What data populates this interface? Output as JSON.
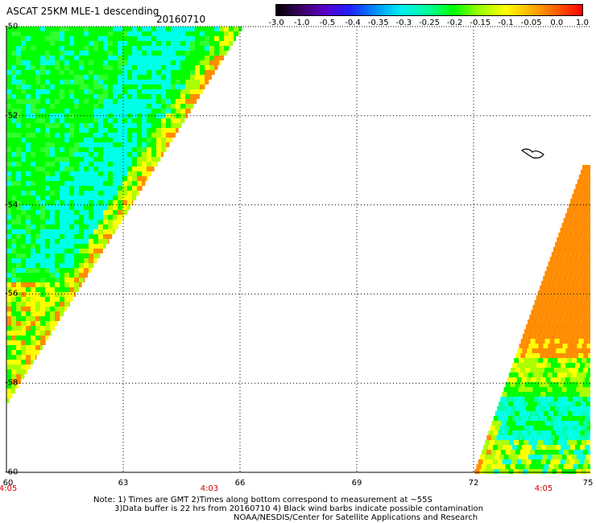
{
  "header": {
    "title": "ASCAT 25KM MLE-1 descending",
    "date": "20160710"
  },
  "colorbar": {
    "tick_labels": [
      "-3.0",
      "-1.0",
      "-0.5",
      "-0.4",
      "-0.35",
      "-0.3",
      "-0.25",
      "-0.2",
      "-0.15",
      "-0.1",
      "-0.05",
      "0.0",
      "1.0"
    ],
    "colors": [
      "#000000",
      "#3c0064",
      "#5a00c8",
      "#1e1eff",
      "#0096ff",
      "#00f0f0",
      "#00ff96",
      "#00ff00",
      "#96ff00",
      "#ffff00",
      "#ffb400",
      "#ff6400",
      "#ff0000"
    ]
  },
  "map": {
    "lat_labels": [
      "-50",
      "-52",
      "-54",
      "-56",
      "-58",
      "-60"
    ],
    "lon_labels": [
      "60",
      "63",
      "66",
      "69",
      "72",
      "75"
    ],
    "time_labels": [
      "4:05",
      "4:03",
      "4:05"
    ],
    "swath_colors": {
      "cyan": "#00ffe6",
      "green": "#00ff00",
      "yellow_green": "#aaff00",
      "yellow": "#ffff00",
      "orange": "#ff8c00"
    }
  },
  "notes": {
    "line1": "Note: 1) Times are GMT 2)Times along bottom correspond to measurement at ~55S",
    "line2": "3)Data buffer is 22 hrs from 20160710 4) Black wind barbs indicate possible contamination",
    "line3": "NOAA/NESDIS/Center for Satellite Applications and Research"
  }
}
